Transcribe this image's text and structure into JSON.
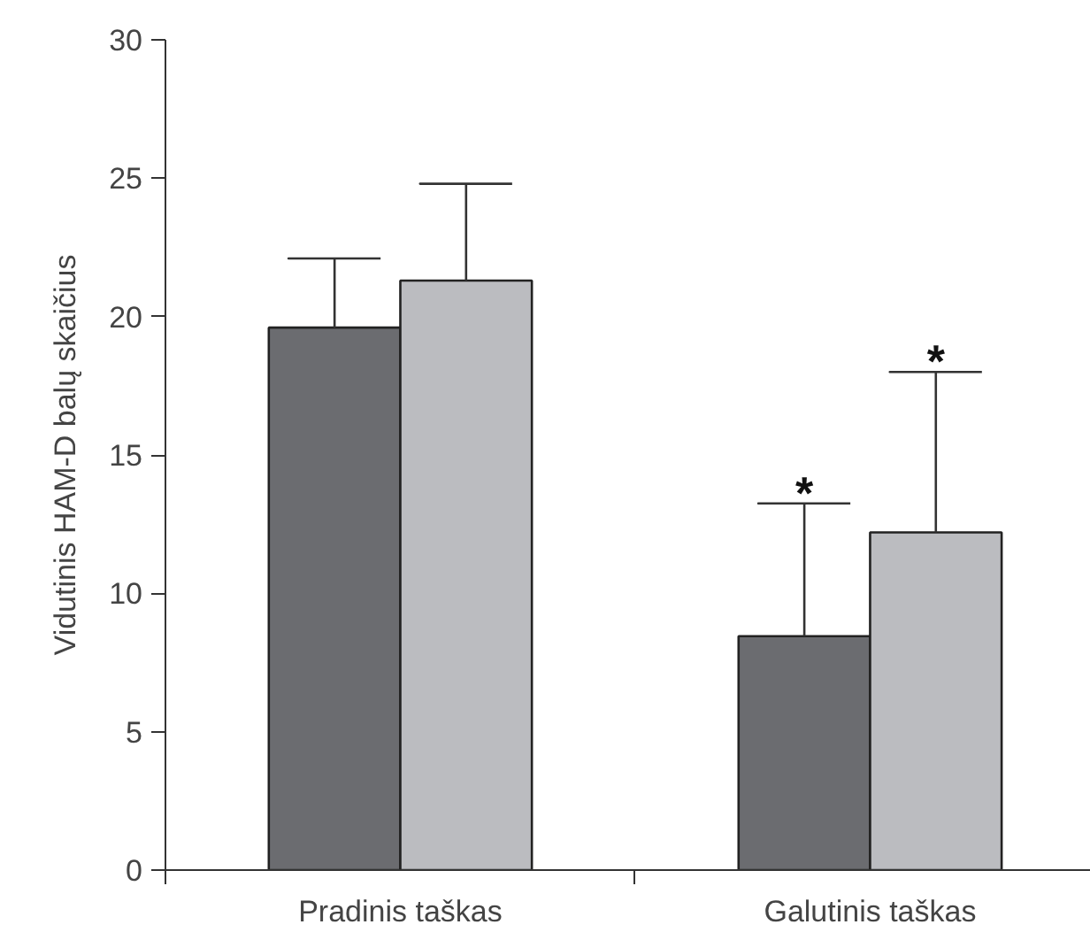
{
  "chart_data": {
    "type": "bar",
    "ylabel": "Vidutinis HAM-D balų skaičius",
    "categories": [
      "Pradinis taškas",
      "Galutinis taškas"
    ],
    "series": [
      {
        "color": "#6b6c70",
        "values": [
          19.6,
          8.45
        ],
        "errors": [
          [
            19.6,
            22.1
          ],
          [
            8.45,
            13.25
          ]
        ],
        "value_labels": [
          null,
          "*"
        ]
      },
      {
        "color": "#bbbcc0",
        "values": [
          21.3,
          12.2
        ],
        "errors": [
          [
            21.3,
            24.8
          ],
          [
            12.2,
            18.0
          ]
        ],
        "value_labels": [
          null,
          "*"
        ]
      }
    ],
    "ylim": [
      0,
      30
    ],
    "yticks": [
      0,
      5,
      10,
      15,
      20,
      25,
      30
    ],
    "grid": false
  }
}
